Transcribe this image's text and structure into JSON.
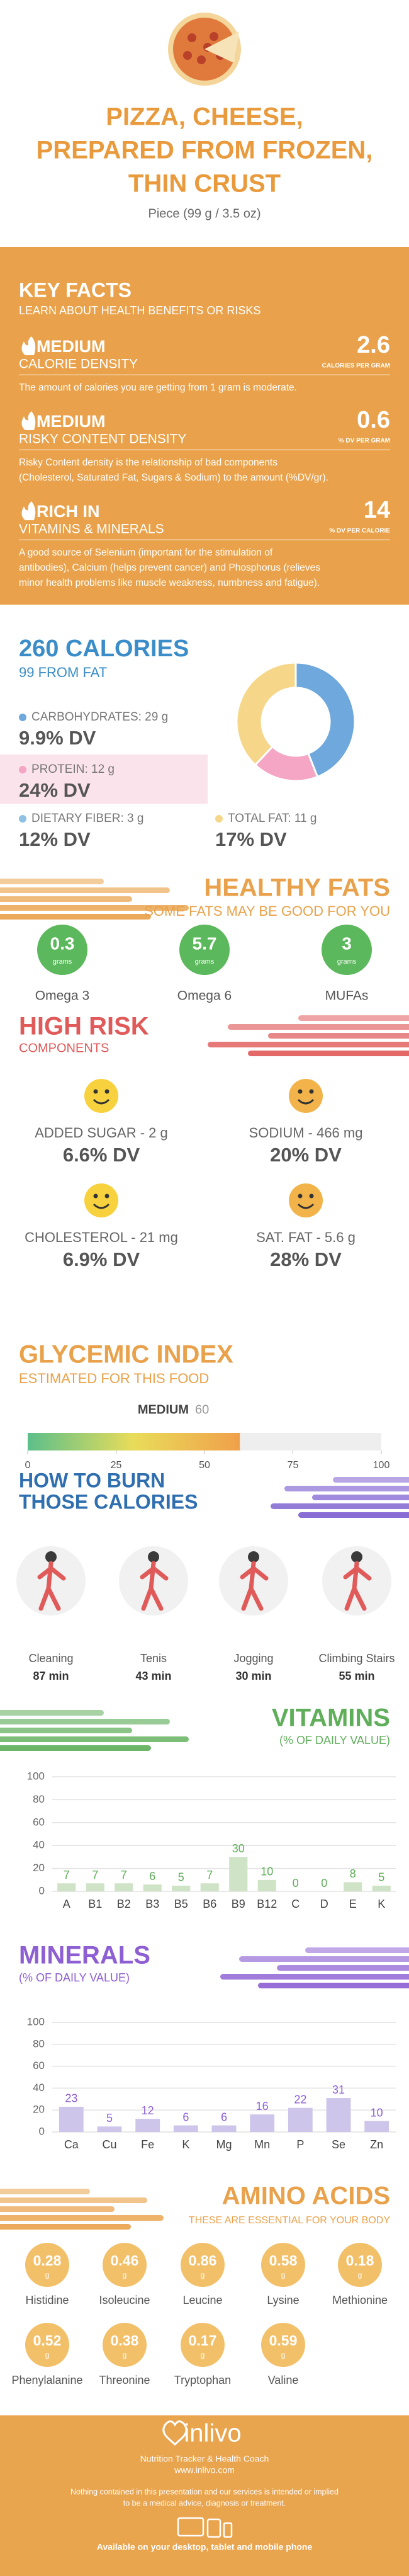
{
  "header": {
    "title_lines": [
      "PIZZA, CHEESE,",
      "PREPARED FROM FROZEN,",
      "THIN CRUST"
    ],
    "serving": "Piece (99 g / 3.5 oz)"
  },
  "key_facts": {
    "title": "KEY FACTS",
    "subtitle": "LEARN ABOUT HEALTH BENEFITS OR RISKS",
    "items": [
      {
        "level": "MEDIUM",
        "label": "CALORIE DENSITY",
        "value": 2.6,
        "unit": "CALORIES PER GRAM",
        "description": [
          "The amount of calories you are getting from 1 gram is moderate."
        ]
      },
      {
        "level": "MEDIUM",
        "label": "RISKY CONTENT DENSITY",
        "value": 0.6,
        "unit": "% DV PER GRAM",
        "description": [
          "Risky Content density is the relationship of bad components",
          "(Cholesterol, Saturated Fat, Sugars & Sodium) to the amount (%DV/gr)."
        ]
      },
      {
        "level": "RICH IN",
        "label": "VITAMINS & MINERALS",
        "value": 14,
        "unit": "% DV PER CALORIE",
        "description": [
          "A good source of Selenium (important for the stimulation of",
          "antibodies), Calcium (helps prevent cancer) and Phosphorus (relieves",
          "minor health problems like muscle weakness, numbness and fatigue)."
        ]
      }
    ]
  },
  "calories": {
    "title": "260 CALORIES",
    "subtitle": "99 FROM FAT",
    "nutrients": [
      {
        "name": "CARBOHYDRATES: 29 g",
        "dv": "9.9% DV",
        "color": "#6fa8dc"
      },
      {
        "name": "PROTEIN: 12 g",
        "dv": "24% DV",
        "color": "#f4a6c4"
      },
      {
        "name": "DIETARY FIBER: 3 g",
        "dv": "12% DV",
        "color": "#8fc1e3"
      },
      {
        "name": "TOTAL FAT: 11 g",
        "dv": "17% DV",
        "color": "#f6d78a"
      }
    ],
    "donut": {
      "type": "pie",
      "values": [
        44,
        18,
        38
      ],
      "colors": [
        "#6fa8dc",
        "#f4a6c4",
        "#f6d78a"
      ]
    }
  },
  "healthy_fats": {
    "title": "HEALTHY FATS",
    "subtitle": "SOME FATS MAY BE GOOD FOR YOU",
    "unit": "grams",
    "items": [
      {
        "name": "Omega 3",
        "value": "0.3"
      },
      {
        "name": "Omega 6",
        "value": "5.7"
      },
      {
        "name": "MUFAs",
        "value": "3"
      }
    ]
  },
  "high_risk": {
    "title": "HIGH RISK",
    "subtitle": "COMPONENTS",
    "items": [
      {
        "name": "ADDED SUGAR - 2 g",
        "dv": "6.6% DV",
        "color": "#f7d23e"
      },
      {
        "name": "SODIUM - 466 mg",
        "dv": "20% DV",
        "color": "#f2b44a"
      },
      {
        "name": "CHOLESTEROL - 21 mg",
        "dv": "6.9% DV",
        "color": "#f7d23e"
      },
      {
        "name": "SAT. FAT - 5.6 g",
        "dv": "28% DV",
        "color": "#f2b44a"
      }
    ]
  },
  "glycemic_index": {
    "title": "GLYCEMIC INDEX",
    "subtitle": "ESTIMATED FOR THIS FOOD",
    "level": "MEDIUM",
    "value": 60,
    "xlim": [
      0,
      100
    ],
    "xticks": [
      0,
      25,
      50,
      75,
      100
    ]
  },
  "burn": {
    "title_lines": [
      "HOW TO BURN",
      "THOSE CALORIES"
    ],
    "activities": [
      {
        "name": "Cleaning",
        "time": "87 min"
      },
      {
        "name": "Tenis",
        "time": "43 min"
      },
      {
        "name": "Jogging",
        "time": "30 min"
      },
      {
        "name": "Climbing Stairs",
        "time": "55 min"
      }
    ]
  },
  "chart_data": [
    {
      "type": "bar",
      "title": "VITAMINS",
      "subtitle": "(% OF DAILY VALUE)",
      "categories": [
        "A",
        "B1",
        "B2",
        "B3",
        "B5",
        "B6",
        "B9",
        "B12",
        "C",
        "D",
        "E",
        "K"
      ],
      "values": [
        7,
        7,
        7,
        6,
        5,
        7,
        30,
        10,
        0,
        0,
        8,
        5
      ],
      "color": "#cfe3c6",
      "label_color": "#5fae5a",
      "ylim": [
        0,
        100
      ],
      "yticks": [
        0,
        20,
        40,
        60,
        80,
        100
      ],
      "grid": true
    },
    {
      "type": "bar",
      "title": "MINERALS",
      "subtitle": "(% OF DAILY VALUE)",
      "categories": [
        "Ca",
        "Cu",
        "Fe",
        "K",
        "Mg",
        "Mn",
        "P",
        "Se",
        "Zn"
      ],
      "values": [
        23,
        5,
        12,
        6,
        6,
        16,
        22,
        31,
        10
      ],
      "color": "#cdc6ea",
      "label_color": "#8d5fd3",
      "ylim": [
        0,
        100
      ],
      "yticks": [
        0,
        20,
        40,
        60,
        80,
        100
      ],
      "grid": true
    }
  ],
  "amino_acids": {
    "title": "AMINO ACIDS",
    "subtitle": "THESE ARE ESSENTIAL FOR YOUR BODY",
    "unit": "g",
    "items": [
      {
        "name": "Histidine",
        "value": "0.28"
      },
      {
        "name": "Isoleucine",
        "value": "0.46"
      },
      {
        "name": "Leucine",
        "value": "0.86"
      },
      {
        "name": "Lysine",
        "value": "0.58"
      },
      {
        "name": "Methionine",
        "value": "0.18"
      },
      {
        "name": "Phenylalanine",
        "value": "0.52"
      },
      {
        "name": "Threonine",
        "value": "0.38"
      },
      {
        "name": "Tryptophan",
        "value": "0.17"
      },
      {
        "name": "Valine",
        "value": "0.59"
      }
    ]
  },
  "footer": {
    "brand": "inlivo",
    "tagline": "Nutrition Tracker & Health Coach",
    "url": "www.inlivo.com",
    "disclaimer": [
      "Nothing contained in this presentation and our services is intended or implied",
      "to be a medical advice, diagnosis or treatment."
    ],
    "availability": "Available on your desktop, tablet and mobile phone"
  }
}
